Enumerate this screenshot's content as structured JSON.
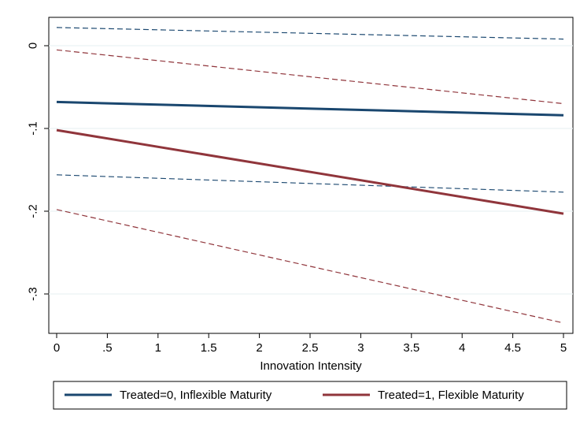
{
  "chart_data": {
    "type": "line",
    "title": "",
    "xlabel": "Innovation Intensity",
    "ylabel": "",
    "xlim": [
      0,
      5
    ],
    "ylim": [
      -0.3,
      0
    ],
    "grid": true,
    "legend_position": "bottom",
    "x_ticks": [
      0,
      0.5,
      1,
      1.5,
      2,
      2.5,
      3,
      3.5,
      4,
      4.5,
      5
    ],
    "x_tick_labels": [
      "0",
      ".5",
      "1",
      "1.5",
      "2",
      "2.5",
      "3",
      "3.5",
      "4",
      "4.5",
      "5"
    ],
    "y_ticks": [
      0,
      -0.1,
      -0.2,
      -0.3
    ],
    "y_tick_labels": [
      "0",
      "-.1",
      "-.2",
      "-.3"
    ],
    "series": [
      {
        "name": "Treated=0, Inflexible Maturity",
        "color": "#1a476f",
        "x": [
          0,
          5
        ],
        "estimate": [
          -0.068,
          -0.084
        ],
        "ci_upper": [
          0.022,
          0.008
        ],
        "ci_lower": [
          -0.156,
          -0.177
        ]
      },
      {
        "name": "Treated=1, Flexible Maturity",
        "color": "#90353b",
        "x": [
          0,
          5
        ],
        "estimate": [
          -0.102,
          -0.203
        ],
        "ci_upper": [
          -0.005,
          -0.07
        ],
        "ci_lower": [
          -0.198,
          -0.335
        ]
      }
    ]
  }
}
